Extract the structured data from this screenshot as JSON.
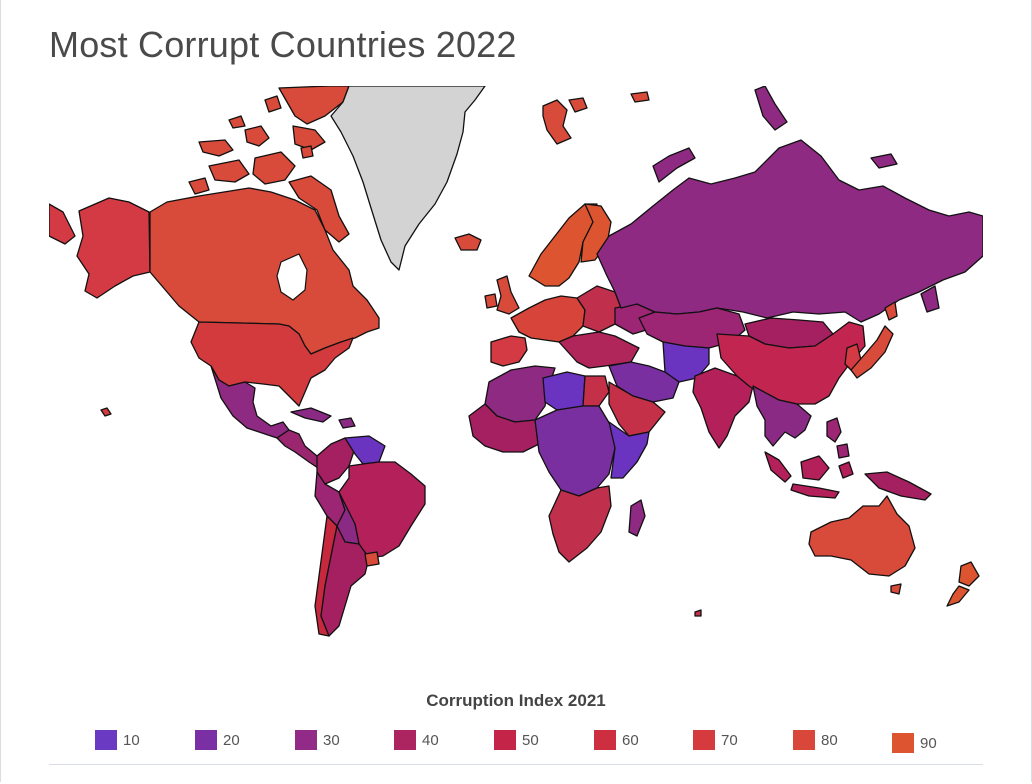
{
  "page": {
    "title": "Most Corrupt Countries 2022"
  },
  "map": {
    "no_data_color": "#d3d3d3",
    "border_color": "#111111",
    "regions": [
      {
        "id": "alaska",
        "color": "#d33a44"
      },
      {
        "id": "canada",
        "color": "#d84a3a"
      },
      {
        "id": "canada-islands",
        "color": "#d84a3a"
      },
      {
        "id": "greenland",
        "color": "#d3d3d3"
      },
      {
        "id": "usa",
        "color": "#d23a3e"
      },
      {
        "id": "mexico",
        "color": "#8e2a82"
      },
      {
        "id": "central-america",
        "color": "#9b2670"
      },
      {
        "id": "cuba",
        "color": "#8a2a84"
      },
      {
        "id": "venezuela",
        "color": "#6a34c0"
      },
      {
        "id": "colombia",
        "color": "#a52060"
      },
      {
        "id": "brazil",
        "color": "#b3205a"
      },
      {
        "id": "peru",
        "color": "#9c2574"
      },
      {
        "id": "bolivia",
        "color": "#8a2a84"
      },
      {
        "id": "chile",
        "color": "#c8283e"
      },
      {
        "id": "argentina",
        "color": "#a52060"
      },
      {
        "id": "uruguay",
        "color": "#d84a3a"
      },
      {
        "id": "iceland",
        "color": "#d84a3a"
      },
      {
        "id": "svalbard",
        "color": "#d84a3a"
      },
      {
        "id": "scandinavia",
        "color": "#dd5530"
      },
      {
        "id": "finland",
        "color": "#dd5530"
      },
      {
        "id": "uk",
        "color": "#d84a3a"
      },
      {
        "id": "ireland",
        "color": "#d84a3a"
      },
      {
        "id": "western-europe",
        "color": "#d6443a"
      },
      {
        "id": "iberia",
        "color": "#d33a44"
      },
      {
        "id": "eastern-europe",
        "color": "#c0304c"
      },
      {
        "id": "ukraine",
        "color": "#9c2574"
      },
      {
        "id": "balkans-turkey",
        "color": "#b0255a"
      },
      {
        "id": "russia",
        "color": "#8e2a82"
      },
      {
        "id": "kazakhstan",
        "color": "#9c2574"
      },
      {
        "id": "central-asia",
        "color": "#6a34c0"
      },
      {
        "id": "middle-east",
        "color": "#7a2fa0"
      },
      {
        "id": "arabia",
        "color": "#c43048"
      },
      {
        "id": "india",
        "color": "#b3205a"
      },
      {
        "id": "mongolia",
        "color": "#a52060"
      },
      {
        "id": "china",
        "color": "#c22650"
      },
      {
        "id": "korea",
        "color": "#d33a44"
      },
      {
        "id": "japan",
        "color": "#d84a3a"
      },
      {
        "id": "southeast-asia",
        "color": "#8a2a84"
      },
      {
        "id": "indonesia",
        "color": "#b3205a"
      },
      {
        "id": "philippines",
        "color": "#9c2574"
      },
      {
        "id": "new-guinea",
        "color": "#a52060"
      },
      {
        "id": "australia",
        "color": "#d84a3a"
      },
      {
        "id": "new-zealand",
        "color": "#dd5530"
      },
      {
        "id": "north-africa",
        "color": "#8e2a82"
      },
      {
        "id": "libya",
        "color": "#6a34c0"
      },
      {
        "id": "west-africa",
        "color": "#a52060"
      },
      {
        "id": "central-africa",
        "color": "#7a2fa0"
      },
      {
        "id": "east-africa",
        "color": "#6a34c0"
      },
      {
        "id": "southern-africa",
        "color": "#c0304c"
      },
      {
        "id": "madagascar",
        "color": "#8e2a82"
      }
    ]
  },
  "legend": {
    "title": "Corruption Index 2021",
    "items": [
      {
        "label": "10",
        "color": "#6a3ac2"
      },
      {
        "label": "20",
        "color": "#7a30a4"
      },
      {
        "label": "30",
        "color": "#922a88"
      },
      {
        "label": "40",
        "color": "#ac2460"
      },
      {
        "label": "50",
        "color": "#c42448"
      },
      {
        "label": "60",
        "color": "#cd2f40"
      },
      {
        "label": "70",
        "color": "#d53a3c"
      },
      {
        "label": "80",
        "color": "#d9473a"
      },
      {
        "label": "90",
        "color": "#dd5530"
      }
    ]
  }
}
